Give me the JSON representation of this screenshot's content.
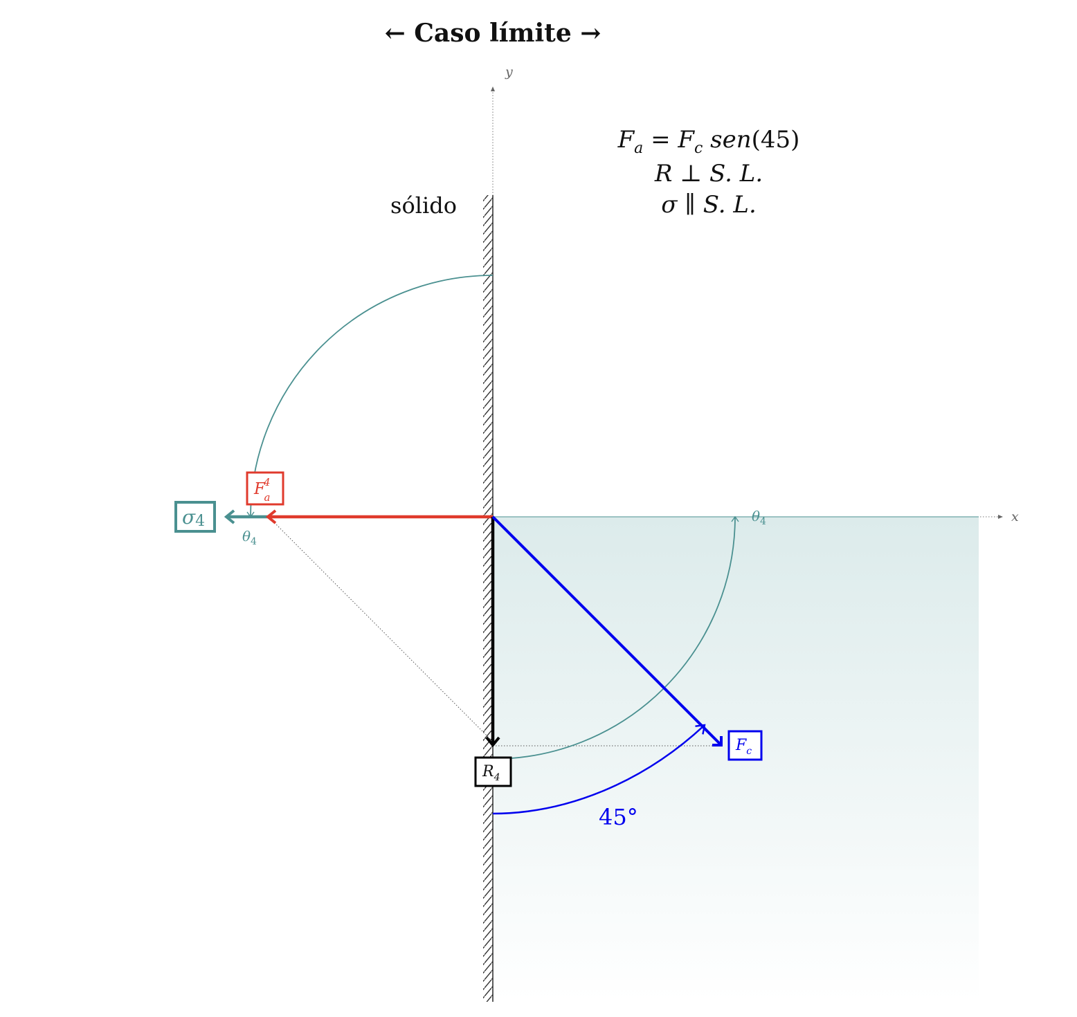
{
  "title": "← Caso límite →",
  "axes": {
    "x_label": "x",
    "y_label": "y"
  },
  "solid_label": "sólido",
  "equations": {
    "line1": {
      "lhs": "F",
      "lhs_sub": "a",
      "op": " = ",
      "rhs": "F",
      "rhs_sub": "c",
      "func": " sen",
      "arg": "(45)"
    },
    "line2": "R ⊥ S. L.",
    "line3": "σ ∥ S. L."
  },
  "labels": {
    "fa": {
      "base": "F",
      "sub": "a",
      "sup": "4"
    },
    "sigma": {
      "base": "σ",
      "sub": "4"
    },
    "fc": {
      "base": "F",
      "sub": "c"
    },
    "r": {
      "base": "R",
      "sub": "4"
    },
    "theta_left": {
      "base": "θ",
      "sub": "4"
    },
    "theta_right": {
      "base": "θ",
      "sub": "4"
    },
    "angle": "45°"
  },
  "colors": {
    "fa": "#e03a2c",
    "sigma": "#4a9090",
    "fc": "#0000ee",
    "r": "#000000",
    "axis": "#666666",
    "fill_top": "#dcebeb",
    "fill_bottom": "#ffffff"
  }
}
